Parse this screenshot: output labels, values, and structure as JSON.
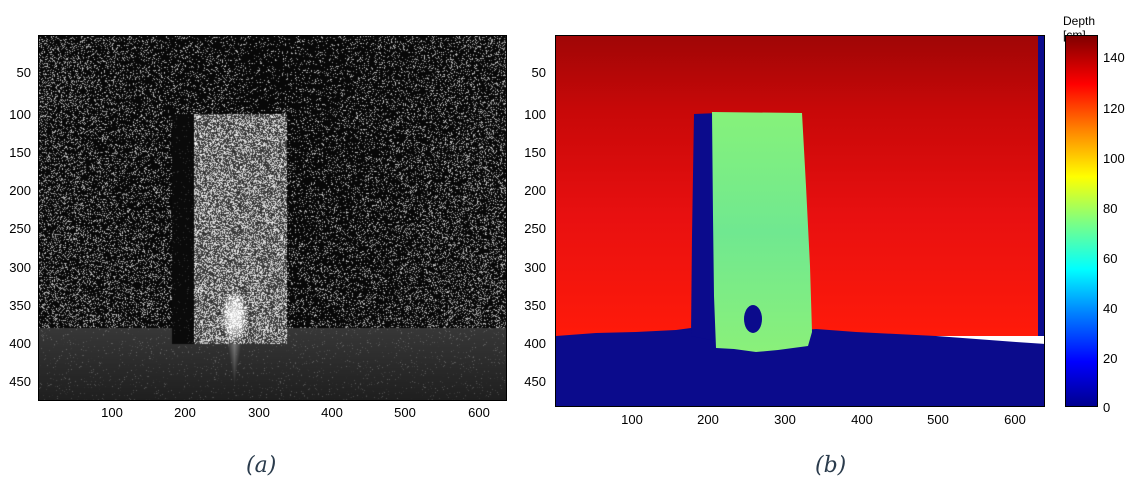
{
  "panel_a": {
    "caption": "(a)",
    "y_ticks": [
      "50",
      "100",
      "150",
      "200",
      "250",
      "300",
      "350",
      "400",
      "450"
    ],
    "x_ticks": [
      "100",
      "200",
      "300",
      "400",
      "500",
      "600"
    ]
  },
  "panel_b": {
    "caption": "(b)",
    "y_ticks": [
      "50",
      "100",
      "150",
      "200",
      "250",
      "300",
      "350",
      "400",
      "450"
    ],
    "x_ticks": [
      "100",
      "200",
      "300",
      "400",
      "500",
      "600"
    ],
    "colorbar": {
      "title": "Depth [cm]",
      "ticks": [
        "140",
        "120",
        "100",
        "80",
        "60",
        "40",
        "20",
        "0"
      ],
      "range": [
        0,
        145
      ]
    },
    "colors": {
      "far_wall": "#e01010",
      "floor": "#0b0b8c",
      "box": "#7aee8a",
      "shadow": "#0b0b8c"
    }
  }
}
